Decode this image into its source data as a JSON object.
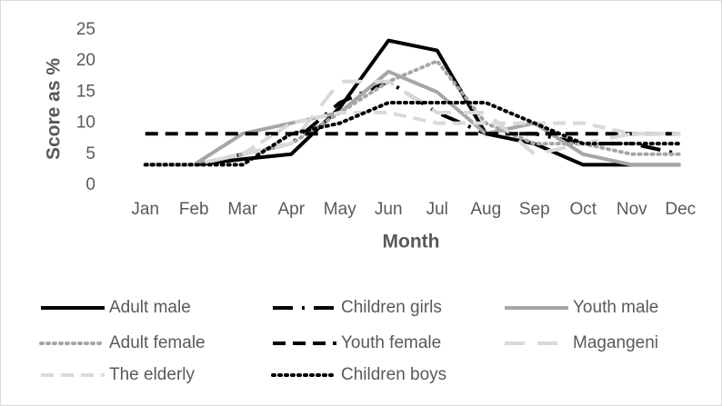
{
  "chart_data": {
    "type": "line",
    "x_label": "Month",
    "y_label": "Score as %",
    "categories": [
      "Jan",
      "Feb",
      "Mar",
      "Apr",
      "May",
      "Jun",
      "Jul",
      "Aug",
      "Sep",
      "Oct",
      "Nov",
      "Dec"
    ],
    "ylim": [
      0,
      25
    ],
    "yticks": [
      0,
      5,
      10,
      15,
      20,
      25
    ],
    "grid": false,
    "legend": "bottom",
    "series": [
      {
        "name": "Adult male",
        "color": "#000000",
        "style": "solid",
        "values": [
          3.3,
          3.3,
          4.2,
          5,
          12.5,
          23.3,
          21.7,
          8.3,
          6.7,
          3.3,
          3.3,
          3.3
        ]
      },
      {
        "name": "Children girls",
        "color": "#000000",
        "style": "dashdot",
        "values": [
          3.3,
          3.3,
          5,
          6.7,
          13.3,
          16.7,
          11.7,
          8.3,
          8.3,
          6.7,
          6.7,
          5
        ]
      },
      {
        "name": "Youth male",
        "color": "#a6a6a6",
        "style": "solid",
        "values": [
          3.3,
          3.3,
          8.3,
          10,
          11.7,
          18.3,
          15,
          8.3,
          10,
          5,
          3.3,
          3.3
        ]
      },
      {
        "name": "Adult female",
        "color": "#a6a6a6",
        "style": "dotted",
        "values": [
          3.3,
          3.3,
          5,
          6.7,
          11.7,
          16.7,
          20,
          10,
          6.7,
          6.7,
          5,
          5
        ]
      },
      {
        "name": "Youth female",
        "color": "#000000",
        "style": "dashed",
        "values": [
          8.3,
          8.3,
          8.3,
          8.3,
          8.3,
          8.3,
          8.3,
          8.3,
          8.3,
          8.3,
          8.3,
          8.3
        ]
      },
      {
        "name": "Magangeni",
        "color": "#d9d9d9",
        "style": "longdash",
        "values": [
          3.3,
          3.3,
          5,
          6.7,
          16.7,
          16.7,
          11.7,
          11.7,
          5,
          6.7,
          8.3,
          8.3
        ]
      },
      {
        "name": "The elderly",
        "color": "#d9d9d9",
        "style": "dashed",
        "values": [
          3.3,
          3.3,
          5,
          10,
          11.7,
          11.7,
          10,
          10,
          10,
          10,
          8.3,
          8.3
        ]
      },
      {
        "name": "Children boys",
        "color": "#000000",
        "style": "dotted",
        "values": [
          3.3,
          3.3,
          3.3,
          8.3,
          10,
          13.3,
          13.3,
          13.3,
          10,
          6.7,
          6.7,
          6.7
        ]
      }
    ]
  }
}
